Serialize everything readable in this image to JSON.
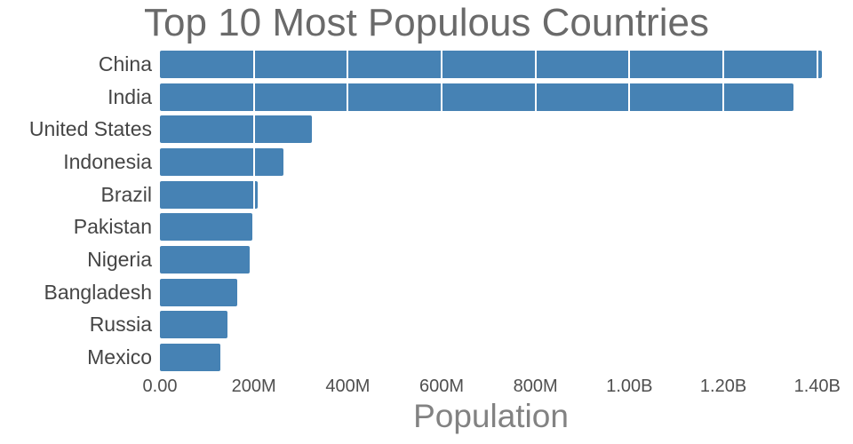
{
  "title": "Top 10 Most Populous Countries",
  "xlabel": "Population",
  "chart_data": {
    "type": "bar",
    "orientation": "horizontal",
    "title": "Top 10 Most Populous Countries",
    "xlabel": "Population",
    "ylabel": "",
    "categories": [
      "China",
      "India",
      "United States",
      "Indonesia",
      "Brazil",
      "Pakistan",
      "Nigeria",
      "Bangladesh",
      "Russia",
      "Mexico"
    ],
    "values": [
      1410000000,
      1350000000,
      324000000,
      264000000,
      209000000,
      197000000,
      191000000,
      165000000,
      144000000,
      128000000
    ],
    "xlim": [
      0,
      1410000000
    ],
    "x_tick_labels": [
      "0.00",
      "200M",
      "400M",
      "600M",
      "800M",
      "1.00B",
      "1.20B",
      "1.40B"
    ],
    "x_tick_values": [
      0,
      200000000,
      400000000,
      600000000,
      800000000,
      1000000000,
      1200000000,
      1400000000
    ],
    "grid": true,
    "legend": "none",
    "bar_color": "#4682b4",
    "title_color": "#6a6a6a",
    "label_color": "#454545",
    "tick_color": "#4f4f4f",
    "xlabel_color": "#828282"
  }
}
